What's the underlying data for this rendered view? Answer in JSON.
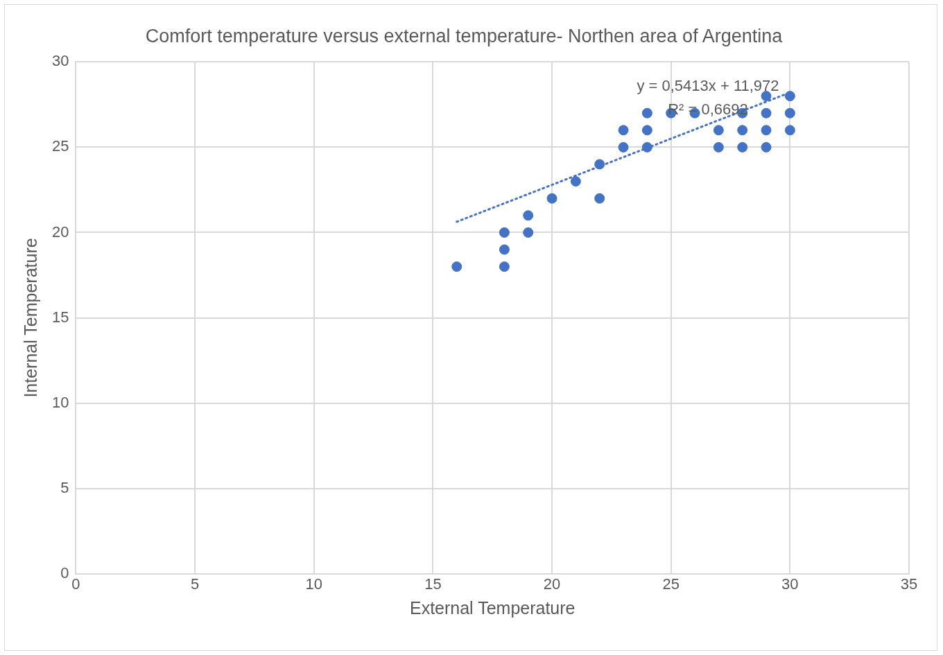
{
  "chart_data": {
    "type": "scatter",
    "title": "Comfort temperature versus external temperature- Northen area of Argentina",
    "xlabel": "External Temperature",
    "ylabel": "Internal Temperature",
    "xlim": [
      0,
      35
    ],
    "xticks": [
      0,
      5,
      10,
      15,
      20,
      25,
      30,
      35
    ],
    "ylim": [
      0,
      30
    ],
    "yticks": [
      0,
      5,
      10,
      15,
      20,
      25,
      30
    ],
    "grid": true,
    "legend": false,
    "marker": "circle",
    "series": [
      {
        "color": "#4472c4",
        "x": [
          16,
          18,
          18,
          18,
          19,
          19,
          20,
          21,
          22,
          22,
          23,
          23,
          24,
          24,
          24,
          25,
          26,
          27,
          27,
          28,
          28,
          28,
          29,
          29,
          29,
          29,
          30,
          30,
          30
        ],
        "values": [
          18,
          20,
          19,
          18,
          21,
          20,
          22,
          23,
          24,
          22,
          26,
          25,
          27,
          26,
          25,
          27,
          27,
          26,
          25,
          27,
          26,
          25,
          28,
          27,
          26,
          25,
          28,
          27,
          26
        ]
      },
      {
        "type": "line",
        "color": "#4472c4",
        "line_style": "dotted",
        "marker": "none",
        "x": [
          16,
          30
        ],
        "values": [
          20.63,
          28.21
        ]
      }
    ],
    "annotations": [
      "y = 0,5413x + 11,972",
      "R² = 0,6692"
    ]
  }
}
